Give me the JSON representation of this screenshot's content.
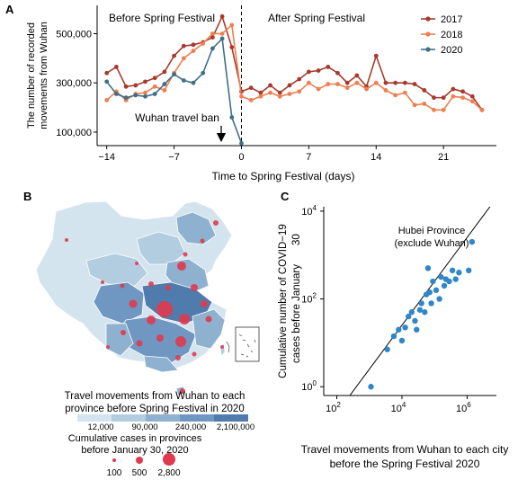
{
  "panel_letters": {
    "a": "A",
    "b": "B",
    "c": "C"
  },
  "colors": {
    "s2017": "#a63a2e",
    "s2018": "#ee7f50",
    "s2020": "#3f6f86",
    "dots": "#2f86c8",
    "cases": "#e03a4e",
    "map_scale": [
      "#d3e4ee",
      "#b3cde0",
      "#8fb1d0",
      "#6f97c1",
      "#4f7bad"
    ]
  },
  "chart_data": [
    {
      "id": "A",
      "type": "line",
      "xlabel": "Time to Spring Festival (days)",
      "ylabel": [
        "The number of recorded",
        "movements from Wuhan"
      ],
      "xlim": [
        -15,
        26.5
      ],
      "ylim": [
        45000,
        615000
      ],
      "xticks": [
        -14,
        -7,
        0,
        7,
        14,
        21
      ],
      "xtick_labels": [
        "−14",
        "−7",
        "0",
        "7",
        "14",
        "21"
      ],
      "yticks": [
        100000,
        300000,
        500000
      ],
      "ytick_labels": [
        "100,000",
        "300,000",
        "500,000"
      ],
      "vline_x": 0,
      "region_labels": {
        "before": "Before Spring Festival",
        "after": "After Spring Festival"
      },
      "annotation": {
        "text": "Wuhan travel ban",
        "x": -2
      },
      "legend_position": "top-right",
      "series": [
        {
          "name": "2017",
          "color_key": "s2017",
          "x": [
            -14,
            -13,
            -12,
            -11,
            -10,
            -9,
            -8,
            -7,
            -6,
            -5,
            -4,
            -3,
            -2,
            -1,
            0,
            1,
            2,
            3,
            4,
            5,
            6,
            7,
            8,
            9,
            10,
            11,
            12,
            13,
            14,
            15,
            16,
            17,
            18,
            19,
            20,
            21,
            22,
            23,
            24,
            25
          ],
          "y": [
            340000,
            365000,
            285000,
            290000,
            305000,
            320000,
            345000,
            410000,
            450000,
            455000,
            465000,
            485000,
            570000,
            445000,
            265000,
            280000,
            260000,
            290000,
            260000,
            290000,
            315000,
            345000,
            350000,
            365000,
            340000,
            300000,
            330000,
            285000,
            410000,
            300000,
            300000,
            300000,
            295000,
            270000,
            240000,
            240000,
            275000,
            265000,
            245000,
            190000
          ]
        },
        {
          "name": "2018",
          "color_key": "s2018",
          "x": [
            -14,
            -13,
            -12,
            -11,
            -10,
            -9,
            -8,
            -7,
            -6,
            -5,
            -4,
            -3,
            -2,
            -1,
            0,
            1,
            2,
            3,
            4,
            5,
            6,
            7,
            8,
            9,
            10,
            11,
            12,
            13,
            14,
            15,
            16,
            17,
            18,
            19,
            20,
            21,
            22,
            23,
            24,
            25
          ],
          "y": [
            230000,
            265000,
            230000,
            255000,
            260000,
            285000,
            270000,
            340000,
            400000,
            430000,
            460000,
            500000,
            500000,
            535000,
            245000,
            230000,
            245000,
            260000,
            245000,
            255000,
            265000,
            300000,
            275000,
            295000,
            295000,
            280000,
            300000,
            275000,
            300000,
            270000,
            250000,
            260000,
            210000,
            215000,
            190000,
            190000,
            245000,
            240000,
            225000,
            190000
          ]
        },
        {
          "name": "2020",
          "color_key": "s2020",
          "x": [
            -14,
            -13,
            -12,
            -11,
            -10,
            -9,
            -8,
            -7,
            -6,
            -5,
            -4,
            -3,
            -2,
            -1,
            0
          ],
          "y": [
            305000,
            255000,
            240000,
            250000,
            245000,
            255000,
            295000,
            335000,
            310000,
            300000,
            340000,
            440000,
            480000,
            160000,
            55000
          ]
        }
      ]
    },
    {
      "id": "C",
      "type": "scatter",
      "xlabel": [
        "Travel movements from Wuhan to each city",
        "before the Spring Festival 2020"
      ],
      "ylabel": [
        "Cumulative number of COVID−19",
        "cases before January",
        "30"
      ],
      "log_x": true,
      "log_y": true,
      "xlim_log10": [
        1.6,
        6.9
      ],
      "ylim_log10": [
        -0.2,
        4.1
      ],
      "xticks_log10": [
        2,
        4,
        6
      ],
      "xtick_labels": [
        [
          "10",
          "2"
        ],
        [
          "10",
          "4"
        ],
        [
          "10",
          "6"
        ]
      ],
      "yticks_log10": [
        0,
        2,
        4
      ],
      "ytick_labels": [
        [
          "10",
          "0"
        ],
        [
          "10",
          "2"
        ],
        [
          "10",
          "4"
        ]
      ],
      "fit_line_log10": [
        [
          2.2,
          -0.4
        ],
        [
          6.9,
          4.3
        ]
      ],
      "annotation": [
        "Hubei Province",
        "(exclude Wuhan)"
      ],
      "points_log10": [
        [
          3.05,
          0.0
        ],
        [
          3.55,
          0.85
        ],
        [
          3.75,
          1.15
        ],
        [
          3.9,
          1.3
        ],
        [
          4.0,
          1.05
        ],
        [
          4.1,
          1.35
        ],
        [
          4.2,
          1.6
        ],
        [
          4.3,
          1.7
        ],
        [
          4.4,
          1.5
        ],
        [
          4.45,
          1.3
        ],
        [
          4.55,
          1.75
        ],
        [
          4.6,
          1.9
        ],
        [
          4.7,
          1.7
        ],
        [
          4.75,
          2.1
        ],
        [
          4.85,
          2.15
        ],
        [
          4.9,
          1.9
        ],
        [
          4.95,
          2.4
        ],
        [
          5.05,
          2.2
        ],
        [
          5.15,
          2.0
        ],
        [
          5.2,
          2.5
        ],
        [
          5.3,
          2.3
        ],
        [
          5.35,
          2.45
        ],
        [
          5.45,
          2.4
        ],
        [
          5.55,
          2.65
        ],
        [
          5.65,
          2.45
        ],
        [
          5.75,
          2.6
        ],
        [
          6.05,
          2.65
        ],
        [
          4.8,
          2.7
        ],
        [
          6.15,
          3.3
        ]
      ]
    }
  ],
  "map": {
    "legend_title": [
      "Travel movements from Wuhan to each",
      "province before Spring Festival in 2020"
    ],
    "scale_labels": [
      "12,000",
      "90,000",
      "240,000",
      "2,100,000"
    ],
    "cases_title": [
      "Cumulative cases in provinces",
      "before January 30, 2020"
    ],
    "case_labels": [
      "100",
      "500",
      "2,800"
    ],
    "case_values": [
      100,
      500,
      2800
    ]
  }
}
